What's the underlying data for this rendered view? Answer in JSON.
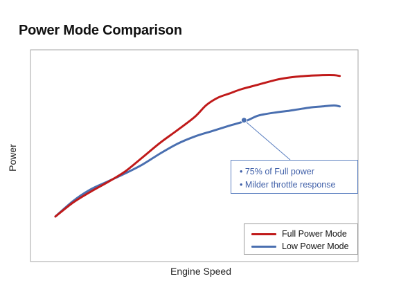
{
  "chart_data": {
    "type": "line",
    "title": "Power Mode Comparison",
    "xlabel": "Engine Speed",
    "ylabel": "Power",
    "xlim": [
      0,
      100
    ],
    "ylim": [
      0,
      100
    ],
    "ticks": "none",
    "grid": false,
    "legend_position": "bottom-right",
    "series": [
      {
        "name": "Full Power Mode",
        "color": "#c01a1a",
        "x": [
          0,
          6,
          12,
          18,
          24,
          30,
          36,
          42,
          48,
          52,
          56,
          60,
          64,
          70,
          76,
          80,
          84,
          88,
          92,
          96,
          98
        ],
        "y": [
          12,
          20.5,
          27.2,
          33.2,
          39.8,
          48.5,
          57.4,
          65.3,
          73.5,
          80.8,
          85.4,
          88,
          90.6,
          93.5,
          96.4,
          97.7,
          98.5,
          99,
          99.3,
          99.3,
          98.8
        ]
      },
      {
        "name": "Low Power Mode",
        "color": "#4a6fb0",
        "x": [
          0,
          6,
          12,
          18,
          24,
          30,
          36,
          42,
          48,
          54,
          60,
          66,
          70,
          76,
          80,
          84,
          88,
          92,
          96,
          98
        ],
        "y": [
          12,
          21.4,
          28.6,
          33.6,
          38.6,
          44.1,
          50.8,
          56.9,
          61.4,
          64.8,
          68.1,
          71.3,
          74.4,
          76.3,
          77.2,
          78.3,
          79.4,
          80,
          80.6,
          80
        ]
      }
    ],
    "annotation": {
      "marker": {
        "series": "Low Power Mode",
        "x": 65,
        "y": 71.5
      },
      "lines": [
        "• 75% of Full power",
        "• Milder throttle response"
      ]
    }
  }
}
